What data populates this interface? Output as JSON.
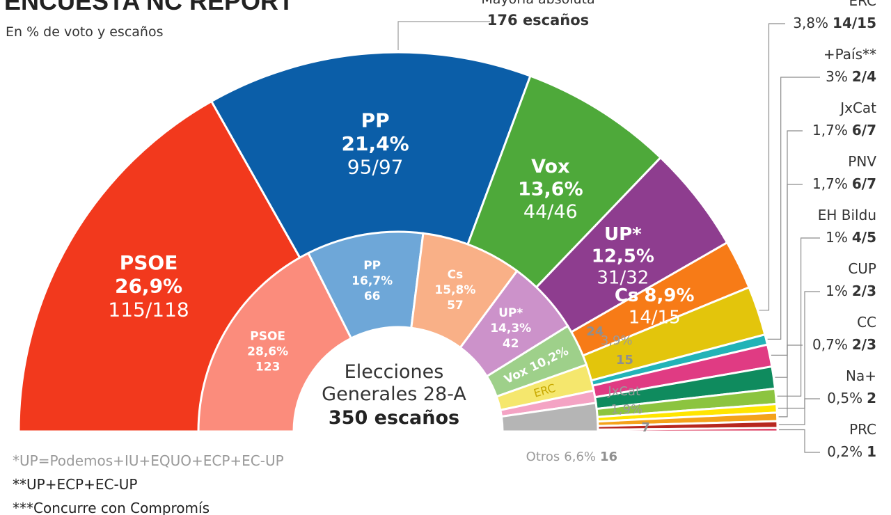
{
  "header": {
    "title": "ENCUESTA NC REPORT",
    "subtitle": "En % de voto y escaños",
    "majority_label": "Mayoría absoluta",
    "majority_seats": "176 escaños"
  },
  "chart_data": [
    {
      "type": "pie",
      "variant": "hemicycle",
      "name": "ENCUESTA NC REPORT",
      "total_seats": 350,
      "slices": [
        {
          "party": "PSOE",
          "pct": "26,9%",
          "seats": "115/118",
          "pct_value": 26.9,
          "seats_min": 115,
          "seats_max": 118,
          "color": "#f2391d"
        },
        {
          "party": "PP",
          "pct": "21,4%",
          "seats": "95/97",
          "pct_value": 21.4,
          "seats_min": 95,
          "seats_max": 97,
          "color": "#0b5ea8"
        },
        {
          "party": "Vox",
          "pct": "13,6%",
          "seats": "44/46",
          "pct_value": 13.6,
          "seats_min": 44,
          "seats_max": 46,
          "color": "#4ea93a"
        },
        {
          "party": "UP*",
          "pct": "12,5%",
          "seats": "31/32",
          "pct_value": 12.5,
          "seats_min": 31,
          "seats_max": 32,
          "color": "#8e3d8f"
        },
        {
          "party": "Cs",
          "pct": "8,9%",
          "seats": "14/15",
          "pct_value": 8.9,
          "seats_min": 14,
          "seats_max": 15,
          "color": "#f77b17"
        },
        {
          "party": "ERC",
          "pct": "3,8%",
          "seats": "14/15",
          "pct_value": 3.8,
          "seats_min": 14,
          "seats_max": 15,
          "color": "#e3c50c"
        },
        {
          "party": "+País**",
          "pct": "3%",
          "seats": "2/4",
          "pct_value": 3,
          "seats_min": 2,
          "seats_max": 4,
          "color": "#22b3b7"
        },
        {
          "party": "JxCat",
          "pct": "1,7%",
          "seats": "6/7",
          "pct_value": 1.7,
          "seats_min": 6,
          "seats_max": 7,
          "color": "#e03b83"
        },
        {
          "party": "PNV",
          "pct": "1,7%",
          "seats": "6/7",
          "pct_value": 1.7,
          "seats_min": 6,
          "seats_max": 7,
          "color": "#0f8b5e"
        },
        {
          "party": "EH Bildu",
          "pct": "1%",
          "seats": "4/5",
          "pct_value": 1,
          "seats_min": 4,
          "seats_max": 5,
          "color": "#8cc43f"
        },
        {
          "party": "CUP",
          "pct": "1%",
          "seats": "2/3",
          "pct_value": 1,
          "seats_min": 2,
          "seats_max": 3,
          "color": "#ffe500"
        },
        {
          "party": "CC",
          "pct": "0,7%",
          "seats": "2/3",
          "pct_value": 0.7,
          "seats_min": 2,
          "seats_max": 3,
          "color": "#f4a21b"
        },
        {
          "party": "Na+",
          "pct": "0,5%",
          "seats": "2",
          "pct_value": 0.5,
          "seats_min": 2,
          "seats_max": 2,
          "color": "#b7271f"
        },
        {
          "party": "PRC",
          "pct": "0,2%",
          "seats": "1",
          "pct_value": 0.2,
          "seats_min": 1,
          "seats_max": 1,
          "color": "#d6133f"
        }
      ]
    },
    {
      "type": "pie",
      "variant": "hemicycle",
      "name": "Elecciones Generales 28-A",
      "title_line1": "Elecciones",
      "title_line2": "Generales 28-A",
      "title_line3": "350 escaños",
      "total_seats": 350,
      "slices": [
        {
          "party": "PSOE",
          "pct": "28,6%",
          "seats": "123",
          "pct_value": 28.6,
          "seats_value": 123,
          "color": "#fb8c7c"
        },
        {
          "party": "PP",
          "pct": "16,7%",
          "seats": "66",
          "pct_value": 16.7,
          "seats_value": 66,
          "color": "#6ea7d8"
        },
        {
          "party": "Cs",
          "pct": "15,8%",
          "seats": "57",
          "pct_value": 15.8,
          "seats_value": 57,
          "color": "#f9b087"
        },
        {
          "party": "UP*",
          "pct": "14,3%",
          "seats": "42",
          "pct_value": 14.3,
          "seats_value": 42,
          "color": "#cc92ca"
        },
        {
          "party": "Vox",
          "pct": "10,2%",
          "seats": "24",
          "pct_value": 10.2,
          "seats_value": 24,
          "color": "#9ed08a"
        },
        {
          "party": "ERC",
          "pct": "3,9%",
          "seats": "15",
          "pct_value": 3.9,
          "seats_value": 15,
          "color": "#f5e76d"
        },
        {
          "party": "JxCat",
          "pct": "1,9%",
          "seats": "7",
          "pct_value": 1.9,
          "seats_value": 7,
          "color": "#f4a3c4"
        },
        {
          "party": "Otros",
          "pct": "6,6%",
          "seats": "16",
          "pct_value": 6.6,
          "seats_value": 16,
          "color": "#b5b5b5"
        }
      ]
    }
  ],
  "footnotes": [
    "*UP=Podemos+IU+EQUO+ECP+EC-UP",
    "**UP+ECP+EC-UP",
    "***Concurre con Compromís"
  ]
}
